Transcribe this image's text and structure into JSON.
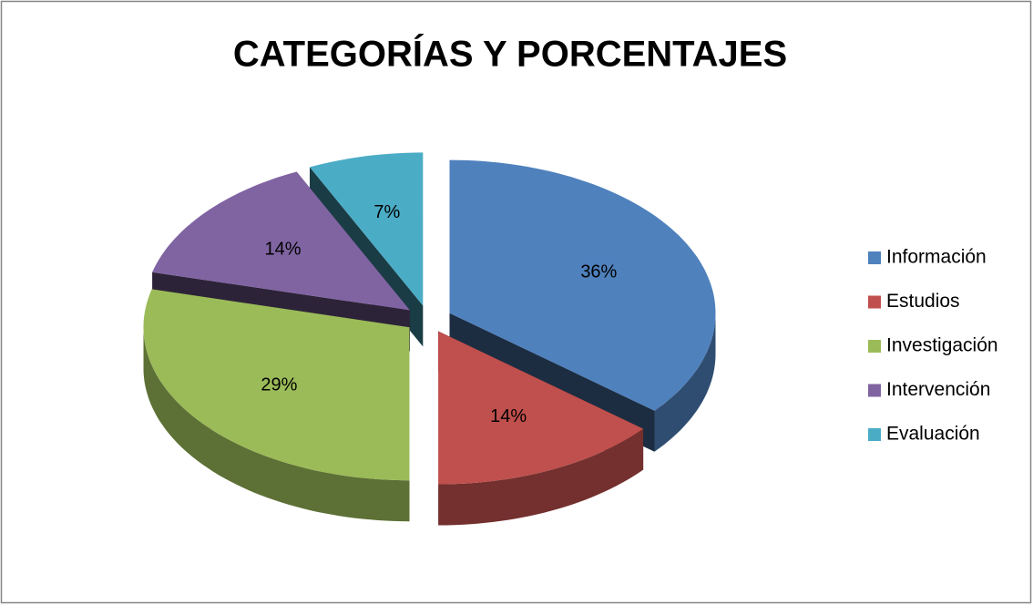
{
  "chart_data": {
    "type": "pie3d",
    "title": "CATEGORÍAS Y PORCENTAJES",
    "categories": [
      "Información",
      "Estudios",
      "Investigación",
      "Intervención",
      "Evaluación"
    ],
    "values": [
      36,
      14,
      29,
      14,
      7
    ],
    "value_labels": [
      "36%",
      "14%",
      "29%",
      "14%",
      "7%"
    ],
    "colors": [
      "#4f81bd",
      "#c0504d",
      "#9bbb59",
      "#8064a2",
      "#4bacc6"
    ],
    "legend": "right"
  }
}
